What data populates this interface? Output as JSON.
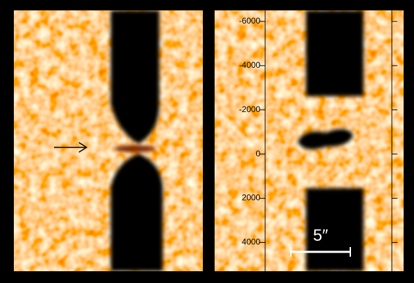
{
  "right_panel": {
    "ylim": [
      -6500,
      5300
    ],
    "yticks": [
      -6000,
      -4000,
      -2000,
      0,
      2000,
      4000
    ]
  },
  "scale_bar": {
    "label": "5″"
  }
}
